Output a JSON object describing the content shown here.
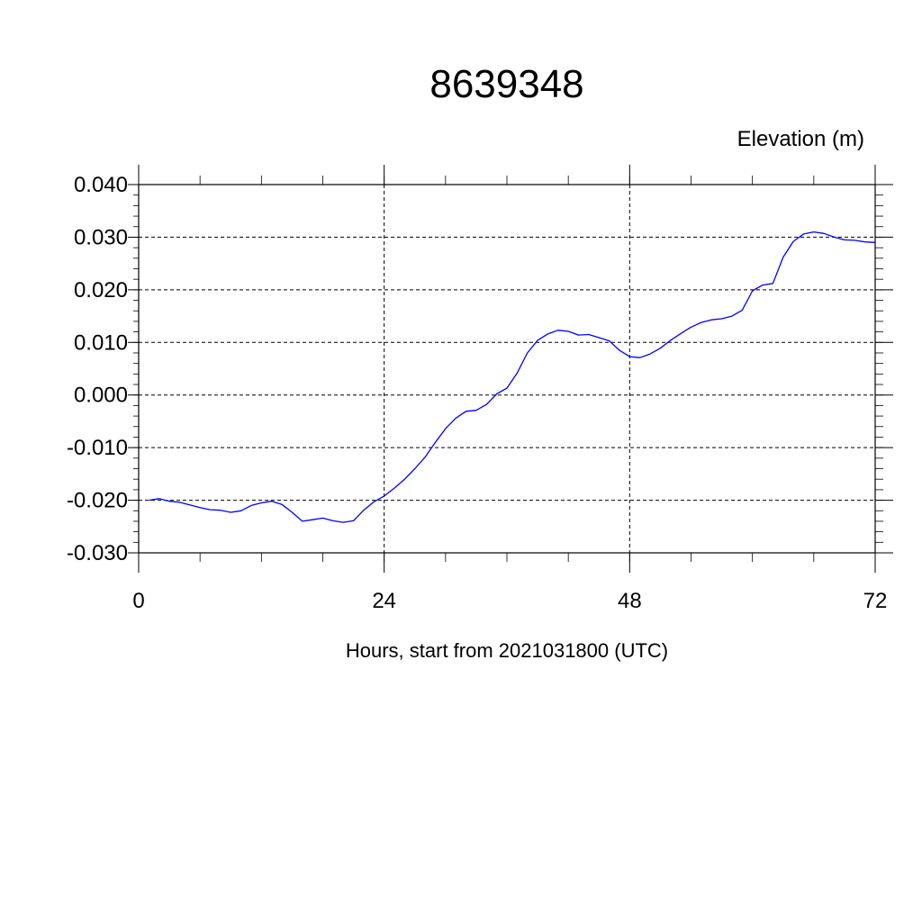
{
  "chart_data": {
    "type": "line",
    "title": "8639348",
    "ylabel": "Elevation (m)",
    "xlabel": "Hours, start from 2021031800 (UTC)",
    "xlim": [
      0,
      72
    ],
    "ylim": [
      -0.03,
      0.04
    ],
    "x_ticks": [
      0,
      24,
      48,
      72
    ],
    "x_tick_labels": [
      "0",
      "24",
      "48",
      "72"
    ],
    "y_ticks": [
      -0.03,
      -0.02,
      -0.01,
      0.0,
      0.01,
      0.02,
      0.03,
      0.04
    ],
    "y_tick_labels": [
      "-0.030",
      "-0.020",
      "-0.010",
      "0.000",
      "0.010",
      "0.020",
      "0.030",
      "0.040"
    ],
    "grid": true,
    "line_color": "#0000ff",
    "series": [
      {
        "x": [
          1,
          2,
          3,
          4,
          5,
          6,
          7,
          8,
          9,
          10,
          11,
          12,
          13,
          14,
          15,
          16,
          17,
          18,
          19,
          20,
          21,
          22,
          23,
          24,
          25,
          26,
          27,
          28,
          29,
          30,
          31,
          32,
          33,
          34,
          35,
          36,
          37,
          38,
          39,
          40,
          41,
          42,
          43,
          44,
          45,
          46,
          47,
          48,
          49,
          50,
          51,
          52,
          53,
          54,
          55,
          56,
          57,
          58,
          59,
          60,
          61,
          62,
          63,
          64,
          65,
          66,
          67,
          68,
          69,
          70,
          71,
          72
        ],
        "values": [
          -0.02,
          -0.0197,
          -0.0202,
          -0.0204,
          -0.0209,
          -0.0214,
          -0.0218,
          -0.0219,
          -0.0223,
          -0.022,
          -0.021,
          -0.0205,
          -0.0202,
          -0.0208,
          -0.0223,
          -0.024,
          -0.0237,
          -0.0234,
          -0.0239,
          -0.0242,
          -0.0239,
          -0.0219,
          -0.0203,
          -0.0192,
          -0.0177,
          -0.016,
          -0.014,
          -0.0118,
          -0.009,
          -0.0064,
          -0.0044,
          -0.0031,
          -0.0029,
          -0.0018,
          0.0002,
          0.0013,
          0.0042,
          0.008,
          0.0104,
          0.0116,
          0.0123,
          0.0121,
          0.0114,
          0.0115,
          0.0109,
          0.0103,
          0.0085,
          0.0073,
          0.0071,
          0.0078,
          0.0089,
          0.0104,
          0.0117,
          0.0129,
          0.0138,
          0.0143,
          0.0145,
          0.015,
          0.0161,
          0.0198,
          0.0209,
          0.0212,
          0.0262,
          0.0292,
          0.0306,
          0.031,
          0.0307,
          0.03,
          0.0295,
          0.0294,
          0.0291,
          0.029
        ]
      }
    ]
  }
}
